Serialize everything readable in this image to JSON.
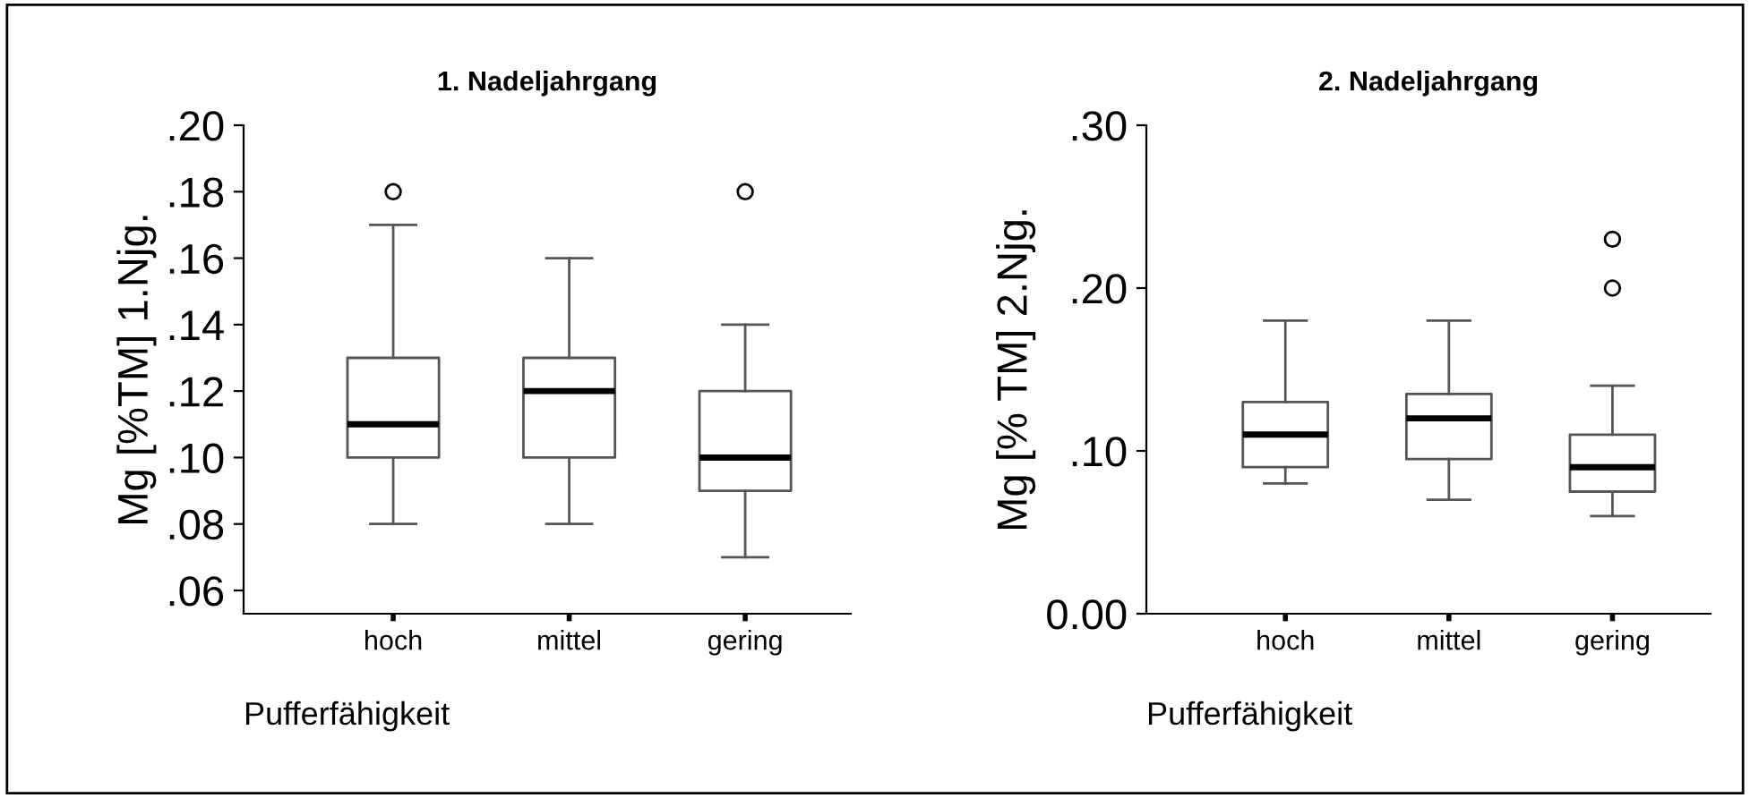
{
  "chart_data": [
    {
      "type": "box",
      "title": "1. Nadeljahrgang",
      "xlabel": "Pufferfähigkeit",
      "ylabel": "Mg [%TM] 1.Njg.",
      "categories": [
        "hoch",
        "mittel",
        "gering"
      ],
      "ylim": [
        0.053,
        0.2
      ],
      "yticks": [
        {
          "value": 0.06,
          "label": ".06"
        },
        {
          "value": 0.08,
          "label": ".08"
        },
        {
          "value": 0.1,
          "label": ".10"
        },
        {
          "value": 0.12,
          "label": ".12"
        },
        {
          "value": 0.14,
          "label": ".14"
        },
        {
          "value": 0.16,
          "label": ".16"
        },
        {
          "value": 0.18,
          "label": ".18"
        },
        {
          "value": 0.2,
          "label": ".20"
        }
      ],
      "grid": false,
      "boxes": [
        {
          "low": 0.08,
          "q1": 0.1,
          "median": 0.11,
          "q3": 0.13,
          "high": 0.17,
          "outliers": [
            0.18
          ]
        },
        {
          "low": 0.08,
          "q1": 0.1,
          "median": 0.12,
          "q3": 0.13,
          "high": 0.16
        },
        {
          "low": 0.07,
          "q1": 0.09,
          "median": 0.1,
          "q3": 0.12,
          "high": 0.14,
          "outliers": [
            0.18
          ]
        }
      ]
    },
    {
      "type": "box",
      "title": "2. Nadeljahrgang",
      "xlabel": "Pufferfähigkeit",
      "ylabel": "Mg [% TM] 2.Njg.",
      "categories": [
        "hoch",
        "mittel",
        "gering"
      ],
      "ylim": [
        0,
        0.3
      ],
      "yticks": [
        {
          "value": 0,
          "label": "0.00"
        },
        {
          "value": 0.1,
          "label": ".10"
        },
        {
          "value": 0.2,
          "label": ".20"
        },
        {
          "value": 0.3,
          "label": ".30"
        }
      ],
      "grid": false,
      "boxes": [
        {
          "low": 0.08,
          "q1": 0.09,
          "median": 0.11,
          "q3": 0.13,
          "high": 0.18
        },
        {
          "low": 0.07,
          "q1": 0.095,
          "median": 0.12,
          "q3": 0.135,
          "high": 0.18
        },
        {
          "low": 0.06,
          "q1": 0.075,
          "median": 0.09,
          "q3": 0.11,
          "high": 0.14,
          "outliers": [
            0.2,
            0.23
          ]
        }
      ]
    }
  ]
}
